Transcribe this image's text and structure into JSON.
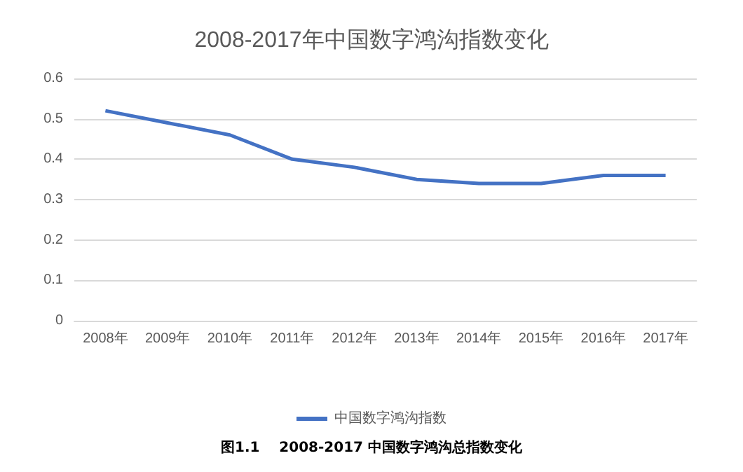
{
  "chart_data": {
    "type": "line",
    "title": "2008-2017年中国数字鸿沟指数变化",
    "categories": [
      "2008年",
      "2009年",
      "2010年",
      "2011年",
      "2012年",
      "2013年",
      "2014年",
      "2015年",
      "2016年",
      "2017年"
    ],
    "series": [
      {
        "name": "中国数字鸿沟指数",
        "color": "#4472c4",
        "values": [
          0.52,
          0.49,
          0.46,
          0.4,
          0.38,
          0.35,
          0.34,
          0.34,
          0.36,
          0.36
        ]
      }
    ],
    "ylim": [
      0,
      0.6
    ],
    "yticks": [
      0,
      0.1,
      0.2,
      0.3,
      0.4,
      0.5,
      0.6
    ],
    "grid": "y",
    "legend": "bottom",
    "marker": "none",
    "line_style": "solid",
    "annotations": [
      "图1.1    2008-2017 中国数字鸿沟总指数变化"
    ]
  }
}
